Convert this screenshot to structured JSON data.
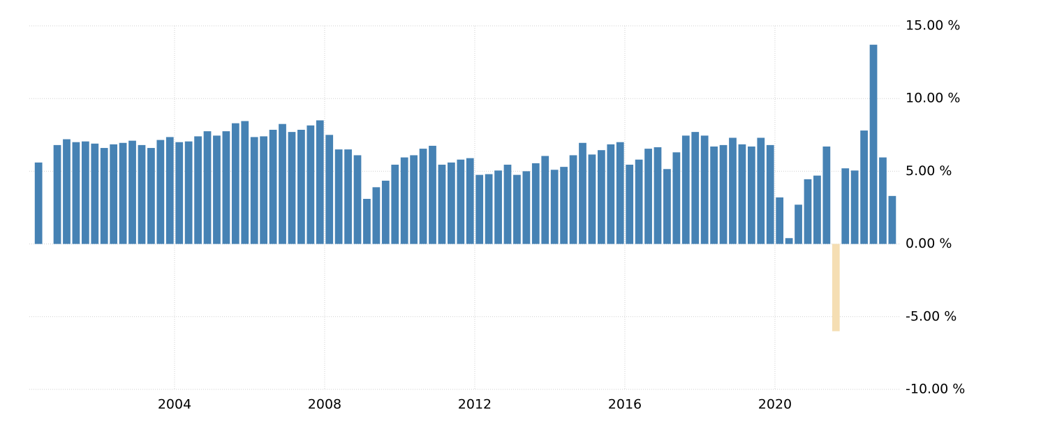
{
  "chart_data": {
    "type": "bar",
    "x": [
      2000.375,
      2000.625,
      2000.875,
      2001.125,
      2001.375,
      2001.625,
      2001.875,
      2002.125,
      2002.375,
      2002.625,
      2002.875,
      2003.125,
      2003.375,
      2003.625,
      2003.875,
      2004.125,
      2004.375,
      2004.625,
      2004.875,
      2005.125,
      2005.375,
      2005.625,
      2005.875,
      2006.125,
      2006.375,
      2006.625,
      2006.875,
      2007.125,
      2007.375,
      2007.625,
      2007.875,
      2008.125,
      2008.375,
      2008.625,
      2008.875,
      2009.125,
      2009.375,
      2009.625,
      2009.875,
      2010.125,
      2010.375,
      2010.625,
      2010.875,
      2011.125,
      2011.375,
      2011.625,
      2011.875,
      2012.125,
      2012.375,
      2012.625,
      2012.875,
      2013.125,
      2013.375,
      2013.625,
      2013.875,
      2014.125,
      2014.375,
      2014.625,
      2014.875,
      2015.125,
      2015.375,
      2015.625,
      2015.875,
      2016.125,
      2016.375,
      2016.625,
      2016.875,
      2017.125,
      2017.375,
      2017.625,
      2017.875,
      2018.125,
      2018.375,
      2018.625,
      2018.875,
      2019.125,
      2019.375,
      2019.625,
      2019.875,
      2020.125,
      2020.375,
      2020.625,
      2020.875,
      2021.125,
      2021.375,
      2021.625,
      2021.875,
      2022.125,
      2022.375,
      2022.625,
      2022.875,
      2023.125
    ],
    "values": [
      5.6,
      null,
      6.8,
      7.2,
      7.0,
      7.05,
      6.9,
      6.6,
      6.85,
      6.95,
      7.1,
      6.8,
      6.6,
      7.15,
      7.35,
      7.0,
      7.05,
      7.4,
      7.75,
      7.45,
      7.75,
      8.3,
      8.45,
      7.35,
      7.4,
      7.85,
      8.25,
      7.7,
      7.85,
      8.15,
      8.5,
      7.5,
      6.5,
      6.5,
      6.1,
      3.1,
      3.9,
      4.35,
      5.45,
      5.95,
      6.1,
      6.55,
      6.75,
      5.45,
      5.6,
      5.8,
      5.9,
      4.75,
      4.8,
      5.05,
      5.45,
      4.75,
      5.0,
      5.55,
      6.05,
      5.1,
      5.3,
      6.1,
      6.95,
      6.15,
      6.45,
      6.85,
      7.0,
      5.45,
      5.8,
      6.55,
      6.65,
      5.15,
      6.3,
      7.45,
      7.7,
      7.45,
      6.7,
      6.8,
      7.3,
      6.85,
      6.7,
      7.3,
      6.8,
      3.2,
      0.4,
      2.7,
      4.45,
      4.7,
      6.7,
      -6.0,
      5.2,
      5.05,
      7.8,
      13.7,
      5.95,
      3.3
    ],
    "color": "#4682b4",
    "negative_color": "#f5deb3",
    "xlim": [
      2000.13,
      2023.35
    ],
    "xticks": [
      2004,
      2008,
      2012,
      2016,
      2020
    ],
    "ylim": [
      -10,
      15
    ],
    "yticks": [
      {
        "value": -10,
        "label": "-10.00 %"
      },
      {
        "value": -5,
        "label": "-5.00 %"
      },
      {
        "value": 0,
        "label": "0.00 %"
      },
      {
        "value": 5,
        "label": "5.00 %"
      },
      {
        "value": 10,
        "label": "10.00 %"
      },
      {
        "value": 15,
        "label": "15.00 %"
      }
    ],
    "grid": true
  }
}
